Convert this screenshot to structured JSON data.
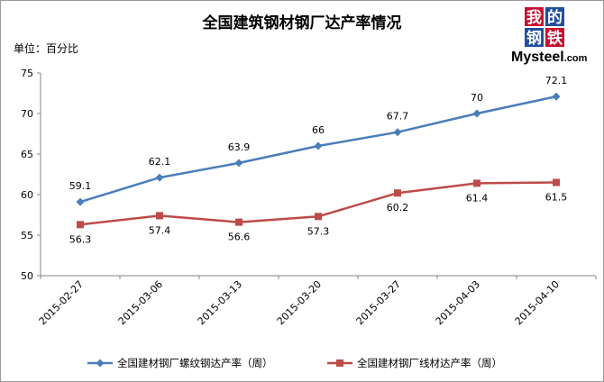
{
  "chart_data": {
    "type": "line",
    "title": "全国建筑钢材钢厂达产率情况",
    "unit_label": "单位：百分比",
    "categories": [
      "2015-02-27",
      "2015-03-06",
      "2015-03-13",
      "2015-03-20",
      "2015-03-27",
      "2015-04-03",
      "2015-04-10"
    ],
    "y_ticks": [
      50,
      55,
      60,
      65,
      70,
      75
    ],
    "ylim": [
      50,
      75
    ],
    "grid": false,
    "legend_position": "bottom",
    "series": [
      {
        "name": "全国建材钢厂螺纹钢达产率（周）",
        "color": "#4a7ebb",
        "marker": "diamond",
        "values": [
          59.1,
          62.1,
          63.9,
          66,
          67.7,
          70,
          72.1
        ]
      },
      {
        "name": "全国建材钢厂线材达产率（周）",
        "color": "#be4b48",
        "marker": "square",
        "values": [
          56.3,
          57.4,
          56.6,
          57.3,
          60.2,
          61.4,
          61.5
        ]
      }
    ]
  },
  "logo": {
    "chars": [
      "我",
      "的",
      "钢",
      "铁"
    ],
    "brand": "Mysteel",
    "domain": ".com",
    "colors": [
      "#c8102e",
      "#1f4e9e",
      "#1f4e9e",
      "#c8102e"
    ]
  }
}
